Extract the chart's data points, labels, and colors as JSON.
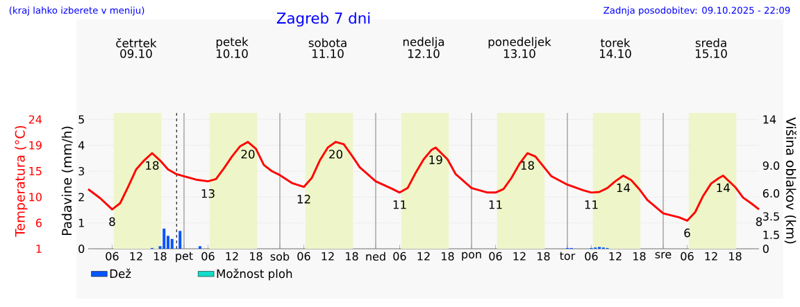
{
  "chart_data": {
    "type": "line",
    "title": "Zagreb 7 dni",
    "annotations": [
      "(kraj lahko izberete v meniju)",
      "Zadnja posodobitev: 09.10.2025 - 22:09",
      "četrtek",
      "petek",
      "sobota",
      "nedelja",
      "ponedeljek",
      "torek",
      "sreda"
    ],
    "ylabel": "Padavine (mm/h)",
    "y2label": "Višina oblakov (km)",
    "y3label": "Temperatura (°C)",
    "xlim": [
      "2025-10-09T00:00",
      "2025-10-16T00:00"
    ],
    "xticks": [
      {
        "value": "2025-10-09T06:00",
        "label": "06"
      },
      {
        "value": "2025-10-09T12:00",
        "label": "12"
      },
      {
        "value": "2025-10-09T18:00",
        "label": "18"
      },
      {
        "value": "2025-10-10T00:00",
        "label": "pet"
      },
      {
        "value": "2025-10-10T06:00",
        "label": "06"
      },
      {
        "value": "2025-10-10T12:00",
        "label": "12"
      },
      {
        "value": "2025-10-10T18:00",
        "label": "18"
      },
      {
        "value": "2025-10-11T00:00",
        "label": "sob"
      },
      {
        "value": "2025-10-11T06:00",
        "label": "06"
      },
      {
        "value": "2025-10-11T12:00",
        "label": "12"
      },
      {
        "value": "2025-10-11T18:00",
        "label": "18"
      },
      {
        "value": "2025-10-12T00:00",
        "label": "ned"
      },
      {
        "value": "2025-10-12T06:00",
        "label": "06"
      },
      {
        "value": "2025-10-12T12:00",
        "label": "12"
      },
      {
        "value": "2025-10-12T18:00",
        "label": "18"
      },
      {
        "value": "2025-10-13T00:00",
        "label": "pon"
      },
      {
        "value": "2025-10-13T06:00",
        "label": "06"
      },
      {
        "value": "2025-10-13T12:00",
        "label": "12"
      },
      {
        "value": "2025-10-13T18:00",
        "label": "18"
      },
      {
        "value": "2025-10-14T00:00",
        "label": "tor"
      },
      {
        "value": "2025-10-14T06:00",
        "label": "06"
      },
      {
        "value": "2025-10-14T12:00",
        "label": "12"
      },
      {
        "value": "2025-10-14T18:00",
        "label": "18"
      },
      {
        "value": "2025-10-15T00:00",
        "label": "sre"
      },
      {
        "value": "2025-10-15T06:00",
        "label": "06"
      },
      {
        "value": "2025-10-15T12:00",
        "label": "12"
      },
      {
        "value": "2025-10-15T18:00",
        "label": "18"
      }
    ],
    "x2lim": [
      "2025-10-09T00:00",
      "2025-10-16T00:00"
    ],
    "x2ticks": [
      {
        "value": "2025-10-09T12:00",
        "label": "09.10"
      },
      {
        "value": "2025-10-10T12:00",
        "label": "10.10"
      },
      {
        "value": "2025-10-11T12:00",
        "label": "11.10"
      },
      {
        "value": "2025-10-12T12:00",
        "label": "12.10"
      },
      {
        "value": "2025-10-13T12:00",
        "label": "13.10"
      },
      {
        "value": "2025-10-14T12:00",
        "label": "14.10"
      },
      {
        "value": "2025-10-15T12:00",
        "label": "15.10"
      }
    ],
    "ylim": [
      0,
      5.25
    ],
    "yticks": [
      0,
      1,
      2,
      3,
      4,
      5
    ],
    "y2lim": [
      0,
      14.7
    ],
    "y2ticks": [
      0,
      1.5,
      3.5,
      {
        "value": 6,
        "label": "6.0"
      },
      {
        "value": 9,
        "label": "9.0"
      },
      14
    ],
    "y3lim": [
      1,
      25.15
    ],
    "y3ticks": [
      1,
      {
        "value": 5.6,
        "label": "6"
      },
      {
        "value": 10.2,
        "label": "10"
      },
      {
        "value": 14.8,
        "label": "15"
      },
      {
        "value": 19.4,
        "label": "19"
      },
      24
    ],
    "grid": "y",
    "legend": "bottom",
    "bands": [
      {
        "axis": "x",
        "from": "2025-10-09T06:24",
        "to": "2025-10-09T18:18",
        "color": "#eef5c8"
      },
      {
        "axis": "x",
        "from": "2025-10-10T06:24",
        "to": "2025-10-10T18:18",
        "color": "#eef5c8"
      },
      {
        "axis": "x",
        "from": "2025-10-11T06:24",
        "to": "2025-10-11T18:18",
        "color": "#eef5c8"
      },
      {
        "axis": "x",
        "from": "2025-10-12T06:24",
        "to": "2025-10-12T18:18",
        "color": "#eef5c8"
      },
      {
        "axis": "x",
        "from": "2025-10-13T06:24",
        "to": "2025-10-13T18:18",
        "color": "#eef5c8"
      },
      {
        "axis": "x",
        "from": "2025-10-14T06:24",
        "to": "2025-10-14T18:18",
        "color": "#eef5c8"
      },
      {
        "axis": "x",
        "from": "2025-10-15T06:24",
        "to": "2025-10-15T18:18",
        "color": "#eef5c8"
      }
    ],
    "ref_lines": [
      {
        "axis": "x",
        "value": "2025-10-09T22:09",
        "color": "#333333",
        "line_style": "dashed"
      },
      {
        "axis": "x",
        "value": "2025-10-10T00:00",
        "color": "#999999"
      },
      {
        "axis": "x",
        "value": "2025-10-11T00:00",
        "color": "#999999"
      },
      {
        "axis": "x",
        "value": "2025-10-12T00:00",
        "color": "#999999"
      },
      {
        "axis": "x",
        "value": "2025-10-13T00:00",
        "color": "#999999"
      },
      {
        "axis": "x",
        "value": "2025-10-14T00:00",
        "color": "#999999"
      },
      {
        "axis": "x",
        "value": "2025-10-15T00:00",
        "color": "#999999"
      }
    ],
    "series": [
      {
        "axis": "y3",
        "color": "#ff0000",
        "x": [
          "2025-10-09T00:00",
          "2025-10-09T03:00",
          "2025-10-09T06:00",
          "2025-10-09T08:00",
          "2025-10-09T10:00",
          "2025-10-09T12:00",
          "2025-10-09T14:00",
          "2025-10-09T16:00",
          "2025-10-09T18:00",
          "2025-10-09T20:00",
          "2025-10-09T22:00",
          "2025-10-10T00:00",
          "2025-10-10T03:00",
          "2025-10-10T06:00",
          "2025-10-10T08:00",
          "2025-10-10T10:00",
          "2025-10-10T12:00",
          "2025-10-10T14:00",
          "2025-10-10T16:00",
          "2025-10-10T18:00",
          "2025-10-10T20:00",
          "2025-10-10T22:00",
          "2025-10-11T00:00",
          "2025-10-11T03:00",
          "2025-10-11T06:00",
          "2025-10-11T08:00",
          "2025-10-11T10:00",
          "2025-10-11T12:00",
          "2025-10-11T14:00",
          "2025-10-11T16:00",
          "2025-10-11T18:00",
          "2025-10-11T20:00",
          "2025-10-12T00:00",
          "2025-10-12T04:00",
          "2025-10-12T06:00",
          "2025-10-12T08:00",
          "2025-10-12T10:00",
          "2025-10-12T12:00",
          "2025-10-12T14:00",
          "2025-10-12T15:00",
          "2025-10-12T18:00",
          "2025-10-12T20:00",
          "2025-10-13T00:00",
          "2025-10-13T04:00",
          "2025-10-13T06:00",
          "2025-10-13T08:00",
          "2025-10-13T10:00",
          "2025-10-13T12:00",
          "2025-10-13T14:00",
          "2025-10-13T16:00",
          "2025-10-13T20:00",
          "2025-10-14T00:00",
          "2025-10-14T04:00",
          "2025-10-14T06:00",
          "2025-10-14T08:00",
          "2025-10-14T10:00",
          "2025-10-14T12:00",
          "2025-10-14T14:00",
          "2025-10-14T16:00",
          "2025-10-14T18:00",
          "2025-10-14T20:00",
          "2025-10-15T00:00",
          "2025-10-15T04:00",
          "2025-10-15T06:00",
          "2025-10-15T08:00",
          "2025-10-15T10:00",
          "2025-10-15T12:00",
          "2025-10-15T14:00",
          "2025-10-15T15:00",
          "2025-10-15T18:00",
          "2025-10-15T20:00",
          "2025-10-15T22:00",
          "2025-10-16T00:00"
        ],
        "values": [
          11.6,
          10.0,
          8,
          9.1,
          12.0,
          15.1,
          16.7,
          18,
          16.7,
          15.1,
          14.3,
          13.9,
          13.3,
          13,
          13.4,
          15.3,
          17.4,
          19.2,
          20,
          18.8,
          15.9,
          14.8,
          14.1,
          12.7,
          12,
          13.6,
          16.7,
          19.0,
          20,
          19.6,
          17.6,
          15.5,
          13.0,
          11.7,
          11,
          11.8,
          14.5,
          16.9,
          18.6,
          19,
          16.9,
          14.3,
          11.8,
          11.0,
          11,
          11.6,
          13.6,
          16.1,
          18,
          17.4,
          13.9,
          12.4,
          11.4,
          11,
          11.1,
          11.8,
          13.0,
          14,
          13.2,
          11.6,
          9.7,
          7.3,
          6.6,
          6,
          7.5,
          10.4,
          12.6,
          13.6,
          14,
          12.0,
          10.1,
          9.1,
          8
        ],
        "value_labels": [
          null,
          null,
          "8",
          null,
          null,
          null,
          null,
          "18",
          null,
          null,
          null,
          null,
          null,
          "13",
          null,
          null,
          null,
          null,
          "20",
          null,
          null,
          null,
          null,
          null,
          "12",
          null,
          null,
          null,
          "20",
          null,
          null,
          null,
          null,
          null,
          "11",
          null,
          null,
          null,
          null,
          "19",
          null,
          null,
          null,
          null,
          "11",
          null,
          null,
          null,
          "18",
          null,
          null,
          null,
          null,
          "11",
          null,
          null,
          null,
          "14",
          null,
          null,
          null,
          null,
          null,
          "6",
          null,
          null,
          null,
          null,
          "14",
          null,
          null,
          null,
          "8"
        ]
      },
      {
        "type": "bar",
        "name": "Dež",
        "color": "#0055ff",
        "x": [
          "2025-10-09T16:00",
          "2025-10-09T18:00",
          "2025-10-09T19:00",
          "2025-10-09T20:00",
          "2025-10-09T21:00",
          "2025-10-09T23:00",
          "2025-10-10T04:00",
          "2025-10-14T00:00",
          "2025-10-14T01:00",
          "2025-10-14T06:00",
          "2025-10-14T07:00",
          "2025-10-14T08:00",
          "2025-10-14T09:00",
          "2025-10-14T10:00"
        ],
        "values": [
          0.03,
          0.1,
          0.78,
          0.5,
          0.38,
          0.69,
          0.1,
          0.03,
          0.03,
          0.03,
          0.05,
          0.07,
          0.05,
          0.03
        ]
      },
      {
        "type": "bar",
        "name": "Možnost ploh",
        "color": "#11ddcc"
      }
    ]
  }
}
